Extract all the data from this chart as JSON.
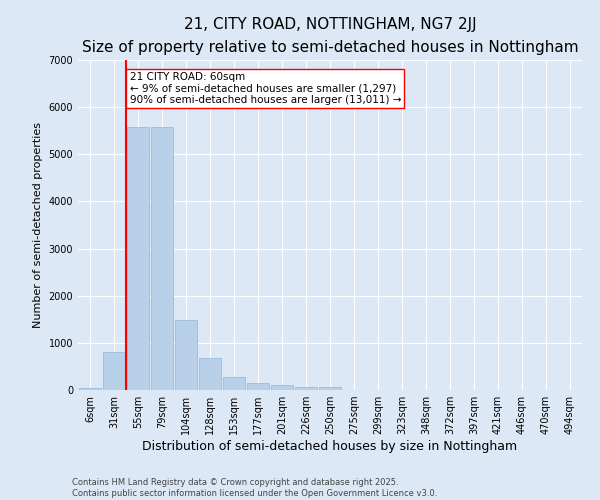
{
  "title": "21, CITY ROAD, NOTTINGHAM, NG7 2JJ",
  "subtitle": "Size of property relative to semi-detached houses in Nottingham",
  "xlabel": "Distribution of semi-detached houses by size in Nottingham",
  "ylabel": "Number of semi-detached properties",
  "categories": [
    "6sqm",
    "31sqm",
    "55sqm",
    "79sqm",
    "104sqm",
    "128sqm",
    "153sqm",
    "177sqm",
    "201sqm",
    "226sqm",
    "250sqm",
    "275sqm",
    "299sqm",
    "323sqm",
    "348sqm",
    "372sqm",
    "397sqm",
    "421sqm",
    "446sqm",
    "470sqm",
    "494sqm"
  ],
  "values": [
    50,
    800,
    5580,
    5580,
    1490,
    670,
    270,
    140,
    100,
    70,
    70,
    0,
    0,
    0,
    0,
    0,
    0,
    0,
    0,
    0,
    0
  ],
  "bar_color": "#b8d0e8",
  "bar_edge_color": "#90b8d8",
  "vline_pos": 1.5,
  "vline_color": "red",
  "annotation_text": "21 CITY ROAD: 60sqm\n← 9% of semi-detached houses are smaller (1,297)\n90% of semi-detached houses are larger (13,011) →",
  "ylim": [
    0,
    7000
  ],
  "yticks": [
    0,
    1000,
    2000,
    3000,
    4000,
    5000,
    6000,
    7000
  ],
  "background_color": "#dce8f5",
  "grid_color": "#ffffff",
  "footer_text": "Contains HM Land Registry data © Crown copyright and database right 2025.\nContains public sector information licensed under the Open Government Licence v3.0.",
  "title_fontsize": 11,
  "subtitle_fontsize": 9,
  "xlabel_fontsize": 9,
  "ylabel_fontsize": 8,
  "tick_fontsize": 7,
  "annotation_fontsize": 7.5,
  "footer_fontsize": 6
}
